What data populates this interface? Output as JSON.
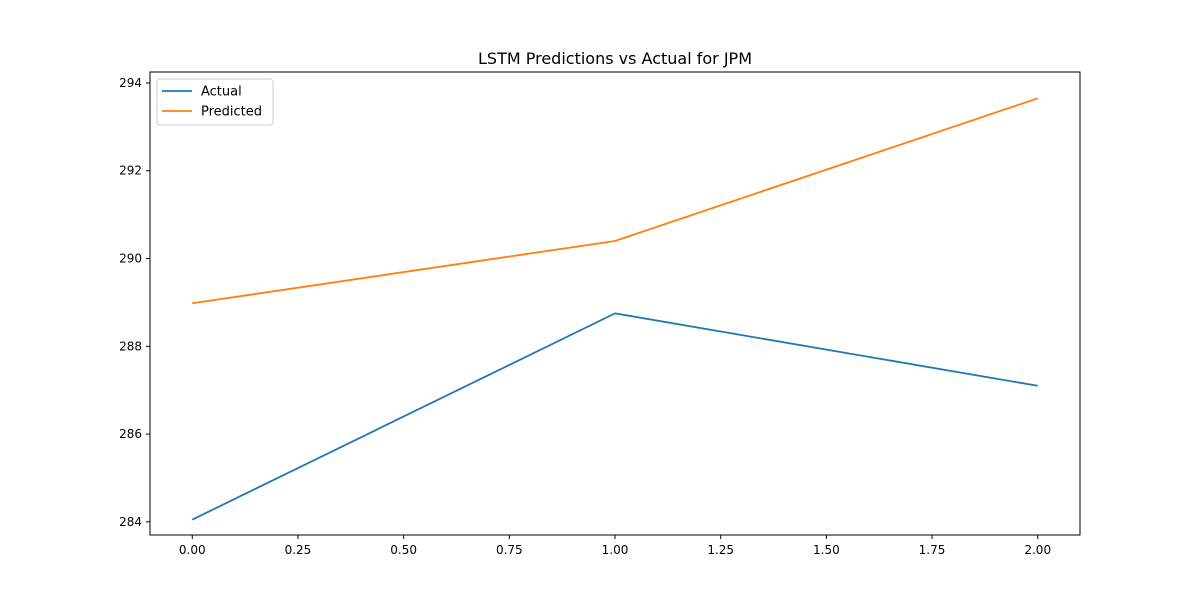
{
  "chart_data": {
    "type": "line",
    "title": "LSTM Predictions vs Actual for JPM",
    "xlabel": "",
    "ylabel": "",
    "x": [
      0,
      1,
      2
    ],
    "xlim": [
      -0.1,
      2.1
    ],
    "ylim": [
      283.7,
      294.25
    ],
    "xticks": [
      0.0,
      0.25,
      0.5,
      0.75,
      1.0,
      1.25,
      1.5,
      1.75,
      2.0
    ],
    "xtick_labels": [
      "0.00",
      "0.25",
      "0.50",
      "0.75",
      "1.00",
      "1.25",
      "1.50",
      "1.75",
      "2.00"
    ],
    "yticks": [
      284,
      286,
      288,
      290,
      292,
      294
    ],
    "ytick_labels": [
      "284",
      "286",
      "288",
      "290",
      "292",
      "294"
    ],
    "grid": false,
    "legend_position": "top-left",
    "series": [
      {
        "name": "Actual",
        "color": "#1f77b4",
        "values": [
          284.05,
          288.75,
          287.1
        ]
      },
      {
        "name": "Predicted",
        "color": "#ff7f0e",
        "values": [
          288.98,
          290.4,
          293.65
        ]
      }
    ]
  }
}
